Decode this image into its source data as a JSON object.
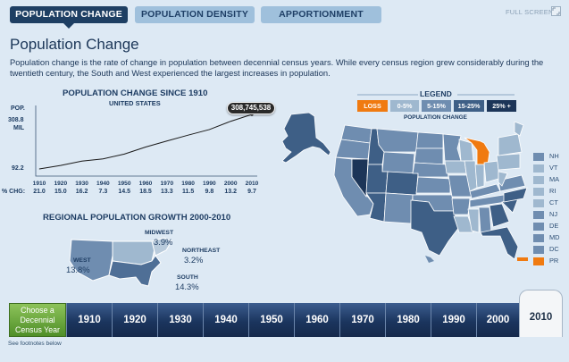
{
  "tabs": [
    {
      "label": "POPULATION CHANGE",
      "active": true
    },
    {
      "label": "POPULATION DENSITY",
      "active": false
    },
    {
      "label": "APPORTIONMENT",
      "active": false
    }
  ],
  "full_screen_label": "FULL SCREEN",
  "page_title": "Population Change",
  "intro": "Population change is the rate of change in population between decennial census years. While every census region grew considerably during the twentieth century, the South and West experienced the largest increases in population.",
  "chart": {
    "title": "POPULATION CHANGE SINCE 1910",
    "subtitle": "UNITED STATES",
    "axis_label": "POP.",
    "y_max_label": "308.8",
    "y_max_unit": "MIL",
    "y_min_label": "92.2",
    "pct_label": "% CHG:",
    "callout": "308,745,538"
  },
  "chart_data": {
    "type": "line",
    "title": "POPULATION CHANGE SINCE 1910",
    "subtitle": "UNITED STATES",
    "ylabel": "POP.",
    "ylim": [
      92.2,
      308.8
    ],
    "x": [
      "1910",
      "1920",
      "1930",
      "1940",
      "1950",
      "1960",
      "1970",
      "1980",
      "1990",
      "2000",
      "2010"
    ],
    "series": [
      {
        "values": [
          92.2,
          106.0,
          123.2,
          132.2,
          151.3,
          179.3,
          203.3,
          226.5,
          248.7,
          281.4,
          308.7
        ]
      }
    ],
    "pct_change": [
      "21.0",
      "15.0",
      "16.2",
      "7.3",
      "14.5",
      "18.5",
      "13.3",
      "11.5",
      "9.8",
      "13.2",
      "9.7"
    ],
    "annotation": "308,745,538",
    "grid": false
  },
  "regional": {
    "title": "REGIONAL POPULATION GROWTH 2000-2010",
    "regions": [
      {
        "name": "MIDWEST",
        "value": "3.9%"
      },
      {
        "name": "NORTHEAST",
        "value": "3.2%"
      },
      {
        "name": "WEST",
        "value": "13.8%"
      },
      {
        "name": "SOUTH",
        "value": "14.3%"
      }
    ]
  },
  "legend": {
    "title": "LEGEND",
    "subtitle": "POPULATION CHANGE",
    "items": [
      {
        "label": "LOSS",
        "color": "#f07a10"
      },
      {
        "label": "0-5%",
        "color": "#9fb8cf"
      },
      {
        "label": "5-15%",
        "color": "#6f8db0"
      },
      {
        "label": "15-25%",
        "color": "#3e5f86"
      },
      {
        "label": "25% +",
        "color": "#1c3558"
      }
    ]
  },
  "small_states": [
    {
      "label": "NH",
      "color": "#6f8db0"
    },
    {
      "label": "VT",
      "color": "#9fb8cf"
    },
    {
      "label": "MA",
      "color": "#9fb8cf"
    },
    {
      "label": "RI",
      "color": "#9fb8cf"
    },
    {
      "label": "CT",
      "color": "#9fb8cf"
    },
    {
      "label": "NJ",
      "color": "#6f8db0"
    },
    {
      "label": "DE",
      "color": "#6f8db0"
    },
    {
      "label": "MD",
      "color": "#6f8db0"
    },
    {
      "label": "DC",
      "color": "#6f8db0"
    },
    {
      "label": "PR",
      "color": "#f07a10"
    }
  ],
  "timeline": {
    "choose_label": "Choose a Decennial Census Year",
    "years": [
      "1910",
      "1920",
      "1930",
      "1940",
      "1950",
      "1960",
      "1970",
      "1980",
      "1990",
      "2000"
    ],
    "selected": "2010"
  },
  "footnote": "See footnotes below"
}
